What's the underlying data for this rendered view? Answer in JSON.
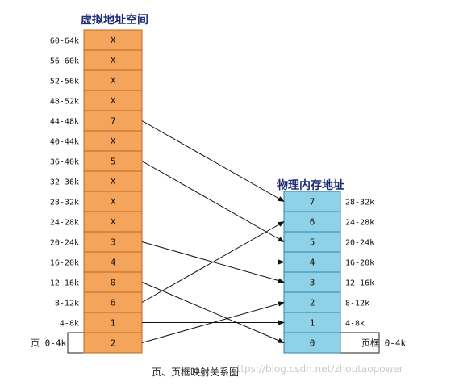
{
  "virtual_title": "虚拟地址空间",
  "physical_title": "物理内存地址",
  "caption": "页、页框映射关系图",
  "watermark": "https://blog.csdn.net/zhoutaopower",
  "page_outside_label": "页 0-4k",
  "frame_outside_label": "页框 0-4k",
  "colors": {
    "virtual_fill": "#f5a45b",
    "virtual_border": "#b96a1f",
    "physical_fill": "#8fd1e6",
    "physical_border": "#2c87a9",
    "arrow": "#111111",
    "title": "#1f2d73"
  },
  "virtual_pages": [
    {
      "range": "60-64k",
      "value": "X"
    },
    {
      "range": "56-60k",
      "value": "X"
    },
    {
      "range": "52-56k",
      "value": "X"
    },
    {
      "range": "48-52k",
      "value": "X"
    },
    {
      "range": "44-48k",
      "value": "7"
    },
    {
      "range": "40-44k",
      "value": "X"
    },
    {
      "range": "36-40k",
      "value": "5"
    },
    {
      "range": "32-36k",
      "value": "X"
    },
    {
      "range": "28-32k",
      "value": "X"
    },
    {
      "range": "24-28k",
      "value": "X"
    },
    {
      "range": "20-24k",
      "value": "3"
    },
    {
      "range": "16-20k",
      "value": "4"
    },
    {
      "range": "12-16k",
      "value": "0"
    },
    {
      "range": "8-12k",
      "value": "6"
    },
    {
      "range": "4-8k",
      "value": "1"
    },
    {
      "range": "",
      "value": "2"
    }
  ],
  "physical_frames": [
    {
      "range": "28-32k",
      "value": "7"
    },
    {
      "range": "24-28k",
      "value": "6"
    },
    {
      "range": "20-24k",
      "value": "5"
    },
    {
      "range": "16-20k",
      "value": "4"
    },
    {
      "range": "12-16k",
      "value": "3"
    },
    {
      "range": "8-12k",
      "value": "2"
    },
    {
      "range": "4-8k",
      "value": "1"
    },
    {
      "range": "",
      "value": "0"
    }
  ]
}
